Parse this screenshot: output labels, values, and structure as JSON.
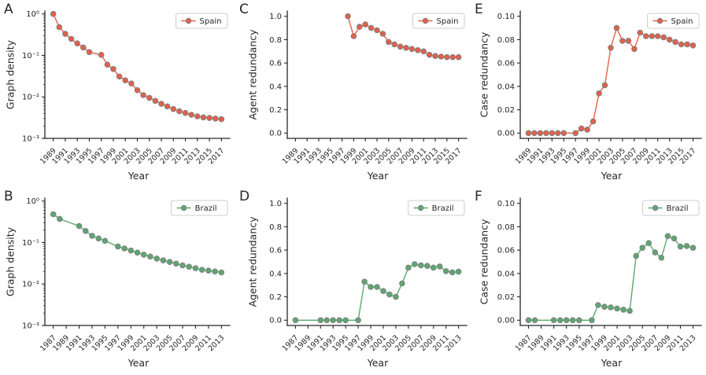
{
  "figure": {
    "background": "#ffffff",
    "axis_color": "#262626",
    "marker_edge_color": "#7f7f7f",
    "spain_color": "#e4604a",
    "brazil_color": "#5ba870"
  },
  "chart_data": [
    {
      "panel": "A",
      "type": "line",
      "xlabel": "Year",
      "ylabel": "Graph density",
      "yscale": "log",
      "ylim": [
        0.001,
        1
      ],
      "yticks": {
        "values": [
          1,
          0.1,
          0.01,
          0.001
        ],
        "labels": [
          "10⁰",
          "10⁻¹",
          "10⁻²",
          "10⁻³"
        ]
      },
      "xrange": [
        1989,
        2017
      ],
      "xticks": [
        1989,
        1991,
        1993,
        1995,
        1997,
        1999,
        2001,
        2003,
        2005,
        2007,
        2009,
        2011,
        2013,
        2015,
        2017
      ],
      "legend_loc": "upper right",
      "series": [
        {
          "name": "Spain",
          "color": "#e4604a",
          "x": [
            1989,
            1990,
            1991,
            1992,
            1993,
            1994,
            1995,
            1997,
            1998,
            1999,
            2000,
            2001,
            2002,
            2003,
            2004,
            2005,
            2006,
            2007,
            2008,
            2009,
            2010,
            2011,
            2012,
            2013,
            2014,
            2015,
            2016,
            2017
          ],
          "y": [
            1.0,
            0.48,
            0.33,
            0.25,
            0.195,
            0.155,
            0.12,
            0.103,
            0.06,
            0.047,
            0.031,
            0.025,
            0.021,
            0.0145,
            0.011,
            0.0095,
            0.008,
            0.0068,
            0.0059,
            0.0051,
            0.0045,
            0.0041,
            0.0037,
            0.0034,
            0.0032,
            0.0031,
            0.003,
            0.0029
          ]
        }
      ]
    },
    {
      "panel": "B",
      "type": "line",
      "xlabel": "Year",
      "ylabel": "Graph density",
      "yscale": "log",
      "ylim": [
        0.001,
        1
      ],
      "yticks": {
        "values": [
          1,
          0.1,
          0.01,
          0.001
        ],
        "labels": [
          "10⁰",
          "10⁻¹",
          "10⁻²",
          "10⁻³"
        ]
      },
      "xrange": [
        1987,
        2013
      ],
      "xticks": [
        1987,
        1989,
        1991,
        1993,
        1995,
        1997,
        1999,
        2001,
        2003,
        2005,
        2007,
        2009,
        2011,
        2013
      ],
      "legend_loc": "upper right",
      "series": [
        {
          "name": "Brazil",
          "color": "#5ba870",
          "x": [
            1987,
            1988,
            1991,
            1992,
            1993,
            1994,
            1995,
            1997,
            1998,
            1999,
            2000,
            2001,
            2002,
            2003,
            2004,
            2005,
            2006,
            2007,
            2008,
            2009,
            2010,
            2011,
            2012,
            2013
          ],
          "y": [
            0.48,
            0.37,
            0.25,
            0.19,
            0.145,
            0.125,
            0.11,
            0.08,
            0.072,
            0.064,
            0.057,
            0.051,
            0.046,
            0.041,
            0.037,
            0.034,
            0.031,
            0.028,
            0.026,
            0.024,
            0.022,
            0.021,
            0.02,
            0.019
          ]
        }
      ]
    },
    {
      "panel": "C",
      "type": "line",
      "xlabel": "Year",
      "ylabel": "Agent redundancy",
      "yscale": "linear",
      "ylim": [
        0,
        1
      ],
      "yticks": {
        "values": [
          0,
          0.2,
          0.4,
          0.6,
          0.8,
          1.0
        ],
        "labels": [
          "0.0",
          "0.2",
          "0.4",
          "0.6",
          "0.8",
          "1.0"
        ]
      },
      "xrange": [
        1989,
        2017
      ],
      "xticks": [
        1989,
        1991,
        1993,
        1995,
        1997,
        1999,
        2001,
        2003,
        2005,
        2007,
        2009,
        2011,
        2013,
        2015,
        2017
      ],
      "legend_loc": "upper right",
      "series": [
        {
          "name": "Spain",
          "color": "#e4604a",
          "x": [
            1998,
            1999,
            2000,
            2001,
            2002,
            2003,
            2004,
            2005,
            2006,
            2007,
            2008,
            2009,
            2010,
            2011,
            2012,
            2013,
            2014,
            2015,
            2016,
            2017
          ],
          "y": [
            1.0,
            0.83,
            0.91,
            0.93,
            0.9,
            0.88,
            0.85,
            0.78,
            0.76,
            0.74,
            0.73,
            0.72,
            0.71,
            0.7,
            0.67,
            0.66,
            0.655,
            0.65,
            0.65,
            0.65
          ]
        }
      ]
    },
    {
      "panel": "D",
      "type": "line",
      "xlabel": "Year",
      "ylabel": "Agent redundancy",
      "yscale": "linear",
      "ylim": [
        0,
        1
      ],
      "yticks": {
        "values": [
          0,
          0.2,
          0.4,
          0.6,
          0.8,
          1.0
        ],
        "labels": [
          "0.0",
          "0.2",
          "0.4",
          "0.6",
          "0.8",
          "1.0"
        ]
      },
      "xrange": [
        1987,
        2013
      ],
      "xticks": [
        1987,
        1989,
        1991,
        1993,
        1995,
        1997,
        1999,
        2001,
        2003,
        2005,
        2007,
        2009,
        2011,
        2013
      ],
      "legend_loc": "upper right",
      "series": [
        {
          "name": "Brazil",
          "color": "#5ba870",
          "x": [
            1987,
            1991,
            1992,
            1993,
            1994,
            1995,
            1997,
            1998,
            1999,
            2000,
            2001,
            2002,
            2003,
            2004,
            2005,
            2006,
            2007,
            2008,
            2009,
            2010,
            2011,
            2012,
            2013
          ],
          "y": [
            0,
            0,
            0,
            0,
            0,
            0,
            0,
            0.33,
            0.285,
            0.285,
            0.25,
            0.22,
            0.2,
            0.315,
            0.45,
            0.48,
            0.47,
            0.465,
            0.45,
            0.46,
            0.42,
            0.41,
            0.415
          ]
        }
      ]
    },
    {
      "panel": "E",
      "type": "line",
      "xlabel": "Year",
      "ylabel": "Case redundancy",
      "yscale": "linear",
      "ylim": [
        0,
        0.1
      ],
      "yticks": {
        "values": [
          0,
          0.02,
          0.04,
          0.06,
          0.08,
          0.1
        ],
        "labels": [
          "0.00",
          "0.02",
          "0.04",
          "0.06",
          "0.08",
          "0.10"
        ]
      },
      "xrange": [
        1989,
        2017
      ],
      "xticks": [
        1989,
        1991,
        1993,
        1995,
        1997,
        1999,
        2001,
        2003,
        2005,
        2007,
        2009,
        2011,
        2013,
        2015,
        2017
      ],
      "legend_loc": "upper right",
      "series": [
        {
          "name": "Spain",
          "color": "#e4604a",
          "x": [
            1989,
            1990,
            1991,
            1992,
            1993,
            1994,
            1995,
            1997,
            1998,
            1999,
            2000,
            2001,
            2002,
            2003,
            2004,
            2005,
            2006,
            2007,
            2008,
            2009,
            2010,
            2011,
            2012,
            2013,
            2014,
            2015,
            2016,
            2017
          ],
          "y": [
            0,
            0,
            0,
            0,
            0,
            0,
            0,
            0,
            0.004,
            0.003,
            0.01,
            0.034,
            0.041,
            0.073,
            0.09,
            0.079,
            0.079,
            0.072,
            0.086,
            0.083,
            0.083,
            0.083,
            0.082,
            0.08,
            0.078,
            0.076,
            0.076,
            0.075
          ]
        }
      ]
    },
    {
      "panel": "F",
      "type": "line",
      "xlabel": "Year",
      "ylabel": "Case redundancy",
      "yscale": "linear",
      "ylim": [
        0,
        0.1
      ],
      "yticks": {
        "values": [
          0,
          0.02,
          0.04,
          0.06,
          0.08,
          0.1
        ],
        "labels": [
          "0.00",
          "0.02",
          "0.04",
          "0.06",
          "0.08",
          "0.10"
        ]
      },
      "xrange": [
        1987,
        2013
      ],
      "xticks": [
        1987,
        1989,
        1991,
        1993,
        1995,
        1997,
        1999,
        2001,
        2003,
        2005,
        2007,
        2009,
        2011,
        2013
      ],
      "legend_loc": "upper right",
      "series": [
        {
          "name": "Brazil",
          "color": "#5ba870",
          "x": [
            1987,
            1988,
            1991,
            1992,
            1993,
            1994,
            1995,
            1997,
            1998,
            1999,
            2000,
            2001,
            2002,
            2003,
            2004,
            2005,
            2006,
            2007,
            2008,
            2009,
            2010,
            2011,
            2012,
            2013
          ],
          "y": [
            0,
            0,
            0,
            0,
            0,
            0,
            0,
            0,
            0.013,
            0.0115,
            0.011,
            0.01,
            0.009,
            0.008,
            0.055,
            0.062,
            0.066,
            0.058,
            0.0535,
            0.072,
            0.07,
            0.063,
            0.0635,
            0.062
          ]
        }
      ]
    }
  ]
}
